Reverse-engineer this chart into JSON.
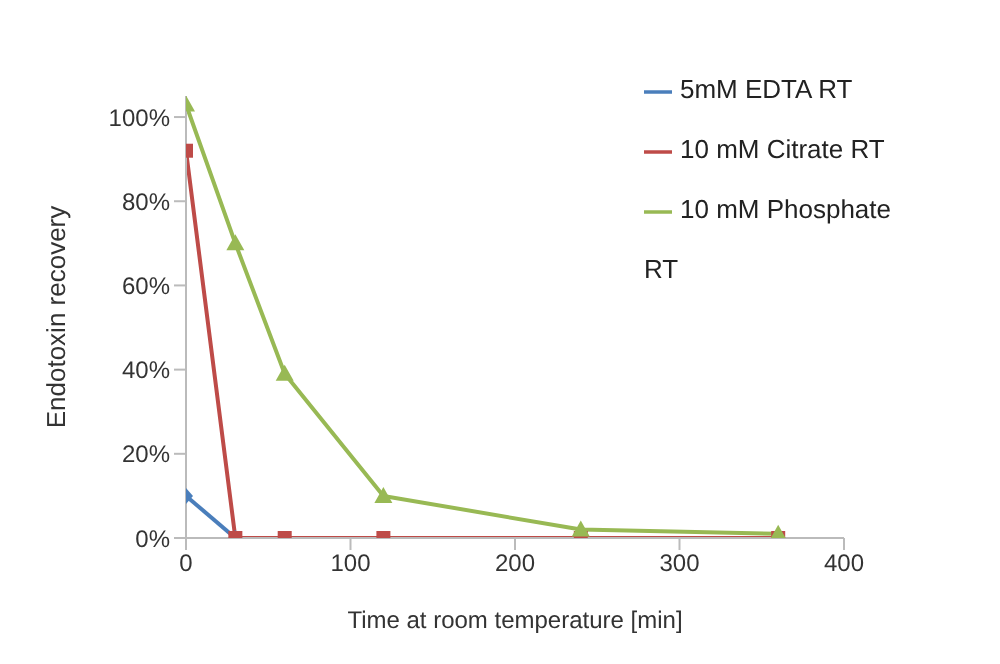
{
  "chart_data": {
    "type": "line",
    "xlabel": "Time at room temperature [min]",
    "ylabel": "Endotoxin recovery",
    "series": [
      {
        "name": "5mM EDTA RT",
        "color": "#4a7ebb",
        "marker": "diamond",
        "x": [
          0,
          30
        ],
        "values": [
          10,
          0
        ]
      },
      {
        "name": "10 mM Citrate RT",
        "color": "#be4b48",
        "marker": "square",
        "x": [
          0,
          30,
          60,
          120,
          240,
          360
        ],
        "values": [
          92,
          0,
          0,
          0,
          0,
          0
        ]
      },
      {
        "name": "10 mM Phosphate RT",
        "color": "#98b954",
        "marker": "triangle",
        "x": [
          0,
          30,
          60,
          120,
          240,
          360
        ],
        "values": [
          103,
          70,
          39,
          10,
          2,
          1
        ]
      }
    ],
    "xlim": [
      0,
      400
    ],
    "xticks": [
      0,
      100,
      200,
      300,
      400
    ],
    "ylim": [
      0,
      105
    ],
    "yticks": [
      {
        "value": 0,
        "label": "0%"
      },
      {
        "value": 20,
        "label": "20%"
      },
      {
        "value": 40,
        "label": "40%"
      },
      {
        "value": 60,
        "label": "60%"
      },
      {
        "value": 80,
        "label": "80%"
      },
      {
        "value": 100,
        "label": "100%"
      }
    ],
    "legend": "right",
    "grid": false
  }
}
